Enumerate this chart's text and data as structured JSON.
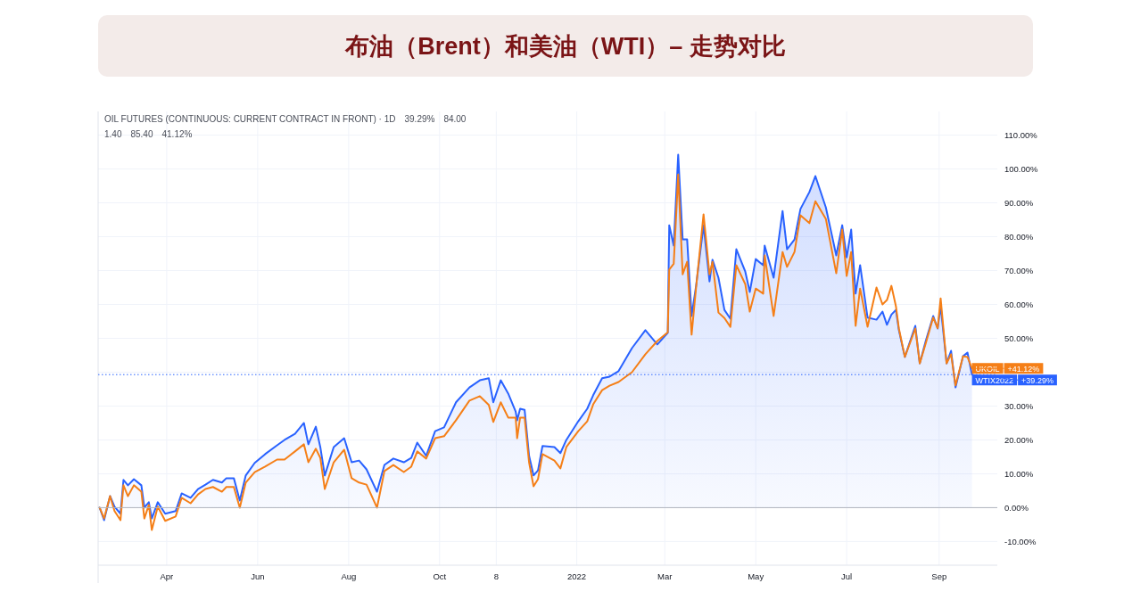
{
  "chart_data": {
    "type": "line",
    "title": "布油（Brent）和美油（WTI）– 走势对比",
    "annotations": [
      "OIL FUTURES (CONTINUOUS: CURRENT CONTRACT IN FRONT) · 1D",
      "39.29%",
      "84.00",
      "1.40",
      "85.40",
      "41.12%",
      {
        "text": "+39.29%",
        "x": "2022-09-23",
        "y": 39.29
      },
      {
        "text": "+41.12%",
        "x": "2022-09-23",
        "y": 41.12
      }
    ],
    "x": [
      "2021-02-15",
      "2021-02-18",
      "2021-02-22",
      "2021-02-25",
      "2021-03-01",
      "2021-03-03",
      "2021-03-06",
      "2021-03-10",
      "2021-03-15",
      "2021-03-17",
      "2021-03-20",
      "2021-03-22",
      "2021-03-26",
      "2021-03-31",
      "2021-04-07",
      "2021-04-11",
      "2021-04-17",
      "2021-04-22",
      "2021-04-27",
      "2021-05-02",
      "2021-05-08",
      "2021-05-11",
      "2021-05-16",
      "2021-05-20",
      "2021-05-24",
      "2021-05-30",
      "2021-06-06",
      "2021-06-14",
      "2021-06-19",
      "2021-06-26",
      "2021-07-02",
      "2021-07-05",
      "2021-07-10",
      "2021-07-13",
      "2021-07-16",
      "2021-07-22",
      "2021-07-29",
      "2021-08-03",
      "2021-08-08",
      "2021-08-13",
      "2021-08-20",
      "2021-08-25",
      "2021-08-31",
      "2021-09-07",
      "2021-09-12",
      "2021-09-16",
      "2021-09-22",
      "2021-09-28",
      "2021-10-04",
      "2021-10-12",
      "2021-10-21",
      "2021-10-28",
      "2021-11-03",
      "2021-11-06",
      "2021-11-11",
      "2021-11-16",
      "2021-11-21",
      "2021-11-22",
      "2021-11-24",
      "2021-11-27",
      "2021-11-30",
      "2021-12-03",
      "2021-12-06",
      "2021-12-09",
      "2021-12-17",
      "2021-12-21",
      "2021-12-25",
      "2022-01-02",
      "2022-01-08",
      "2022-01-12",
      "2022-01-18",
      "2022-01-23",
      "2022-01-29",
      "2022-02-07",
      "2022-02-16",
      "2022-02-24",
      "2022-03-03",
      "2022-03-04",
      "2022-03-07",
      "2022-03-10",
      "2022-03-13",
      "2022-03-16",
      "2022-03-19",
      "2022-03-22",
      "2022-03-27",
      "2022-03-31",
      "2022-04-02",
      "2022-04-06",
      "2022-04-10",
      "2022-04-14",
      "2022-04-18",
      "2022-04-24",
      "2022-04-27",
      "2022-05-01",
      "2022-05-06",
      "2022-05-07",
      "2022-05-13",
      "2022-05-19",
      "2022-05-22",
      "2022-05-27",
      "2022-05-31",
      "2022-06-06",
      "2022-06-10",
      "2022-06-17",
      "2022-06-24",
      "2022-06-28",
      "2022-07-01",
      "2022-07-04",
      "2022-07-07",
      "2022-07-10",
      "2022-07-15",
      "2022-07-21",
      "2022-07-25",
      "2022-07-28",
      "2022-07-31",
      "2022-08-03",
      "2022-08-05",
      "2022-08-09",
      "2022-08-16",
      "2022-08-19",
      "2022-08-23",
      "2022-08-28",
      "2022-08-31",
      "2022-09-02",
      "2022-09-06",
      "2022-09-09",
      "2022-09-12",
      "2022-09-17",
      "2022-09-20",
      "2022-09-23"
    ],
    "series": [
      {
        "name": "WTIX2022",
        "type": "area",
        "color": "#2962ff",
        "values": [
          0,
          -3.7,
          3.4,
          0.3,
          -1.8,
          8.2,
          6.6,
          8.4,
          6.6,
          0,
          1.6,
          -3.2,
          1.6,
          -1.8,
          -1.0,
          4.2,
          2.9,
          5.5,
          6.8,
          8.2,
          7.4,
          8.7,
          8.7,
          2.1,
          9.5,
          13.2,
          15.8,
          18.4,
          20.0,
          21.8,
          25.0,
          18.7,
          23.9,
          17.9,
          9.5,
          17.9,
          20.5,
          13.4,
          13.9,
          11.3,
          4.7,
          12.6,
          14.5,
          13.4,
          14.7,
          19.2,
          15.3,
          22.6,
          23.7,
          31.1,
          35.5,
          37.6,
          38.2,
          31.1,
          37.6,
          33.7,
          28.4,
          25.8,
          29.2,
          28.9,
          15.3,
          9.5,
          11.0,
          18.2,
          17.9,
          16.1,
          20.0,
          25.5,
          29.2,
          33.2,
          38.2,
          38.7,
          40.3,
          47.1,
          52.4,
          48.2,
          51.6,
          83.4,
          77.4,
          104.2,
          79.2,
          79.2,
          56.6,
          65.5,
          83.4,
          66.8,
          73.2,
          67.9,
          58.4,
          55.8,
          76.3,
          69.7,
          63.7,
          73.4,
          71.6,
          77.4,
          67.9,
          87.6,
          76.3,
          79.2,
          88.2,
          93.2,
          97.9,
          88.7,
          74.5,
          83.4,
          73.9,
          82.1,
          63.2,
          71.6,
          56.1,
          55.5,
          57.9,
          54.0,
          57.0,
          58.4,
          52.4,
          44.5,
          53.7,
          42.6,
          49.2,
          56.6,
          52.9,
          59.5,
          42.6,
          46.3,
          35.5,
          44.7,
          45.8,
          39.29
        ]
      },
      {
        "name": "UKOIL",
        "color": "#f57f17",
        "values": [
          0,
          -3.2,
          3.4,
          -1.0,
          -3.7,
          6.6,
          3.4,
          6.6,
          4.7,
          -3.2,
          0.8,
          -6.6,
          0.3,
          -3.9,
          -2.6,
          2.9,
          1.3,
          3.9,
          5.5,
          6.1,
          4.7,
          6.1,
          6.1,
          0,
          7.4,
          10.5,
          12.1,
          14.2,
          14.2,
          16.6,
          18.7,
          13.4,
          17.4,
          14.7,
          5.5,
          13.4,
          17.1,
          8.7,
          7.4,
          6.8,
          0,
          10.8,
          12.6,
          10.5,
          12.1,
          16.6,
          14.5,
          20.5,
          21.1,
          25.8,
          31.6,
          32.9,
          30.3,
          25.3,
          31.1,
          26.6,
          26.6,
          20.5,
          26.6,
          26.6,
          13.4,
          6.3,
          8.4,
          15.8,
          13.9,
          11.6,
          17.9,
          22.6,
          25.5,
          30.5,
          34.7,
          36.0,
          37.1,
          40.0,
          45.3,
          49.2,
          51.8,
          70.3,
          72.0,
          98.4,
          68.9,
          72.6,
          51.1,
          65.0,
          86.6,
          68.9,
          72.6,
          57.6,
          56.0,
          53.4,
          71.6,
          66.0,
          57.9,
          64.7,
          63.2,
          74.5,
          56.6,
          75.5,
          71.1,
          75.5,
          86.3,
          84.0,
          90.5,
          85.3,
          69.2,
          82.1,
          68.4,
          75.5,
          53.7,
          64.7,
          53.4,
          65.0,
          60.0,
          61.3,
          65.5,
          59.5,
          52.9,
          44.5,
          52.9,
          42.6,
          48.5,
          56.1,
          53.0,
          61.8,
          42.6,
          45.3,
          36.1,
          44.7,
          44.5,
          41.12
        ]
      }
    ],
    "xlim": [
      "2021-02-14",
      "2022-10-10"
    ],
    "xticks": [
      {
        "value": "2021-04-01",
        "label": "Apr"
      },
      {
        "value": "2021-06-01",
        "label": "Jun"
      },
      {
        "value": "2021-08-01",
        "label": "Aug"
      },
      {
        "value": "2021-10-01",
        "label": "Oct"
      },
      {
        "value": "2021-11-08",
        "label": "8"
      },
      {
        "value": "2022-01-01",
        "label": "2022"
      },
      {
        "value": "2022-03-01",
        "label": "Mar"
      },
      {
        "value": "2022-05-01",
        "label": "May"
      },
      {
        "value": "2022-07-01",
        "label": "Jul"
      },
      {
        "value": "2022-09-01",
        "label": "Sep"
      }
    ],
    "ylim": [
      -17,
      117
    ],
    "yticks": [
      {
        "value": -10,
        "label": "-10.00%"
      },
      {
        "value": 0,
        "label": "0.00%"
      },
      {
        "value": 10,
        "label": "10.00%"
      },
      {
        "value": 20,
        "label": "20.00%"
      },
      {
        "value": 30,
        "label": "30.00%"
      },
      {
        "value": 40,
        "label": null
      },
      {
        "value": 50,
        "label": "50.00%"
      },
      {
        "value": 60,
        "label": "60.00%"
      },
      {
        "value": 70,
        "label": "70.00%"
      },
      {
        "value": 80,
        "label": "80.00%"
      },
      {
        "value": 90,
        "label": "90.00%"
      },
      {
        "value": 100,
        "label": "100.00%"
      },
      {
        "value": 110,
        "label": "110.00%"
      }
    ],
    "ref_lines": [
      {
        "axis": "y",
        "value": 0,
        "label": null,
        "color": "#b2b5be",
        "line_style": "solid"
      },
      {
        "axis": "y",
        "value": 39.29,
        "label": null,
        "color": "#2962ff",
        "line_style": "dotted"
      }
    ],
    "grid": true,
    "legend": "right"
  }
}
